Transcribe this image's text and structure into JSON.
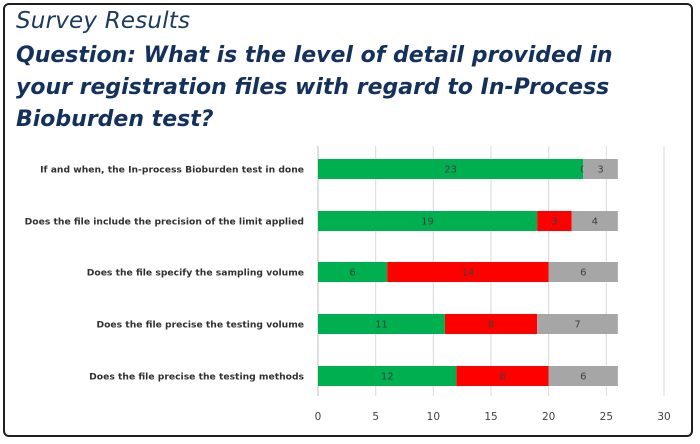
{
  "header": {
    "kicker": "Survey Results",
    "question": "Question: What is the level of detail provided in your registration files with regard to In-Process Bioburden test?"
  },
  "chart_data": {
    "type": "bar",
    "orientation": "horizontal",
    "stacked": true,
    "categories": [
      "If and when, the In-process Bioburden test in done",
      "Does the file include the precision of the limit applied",
      "Does the file specify the sampling volume",
      "Does the file precise the testing volume",
      "Does the file precise the testing methods"
    ],
    "series": [
      {
        "values": [
          23,
          19,
          6,
          11,
          12
        ],
        "color": "#00b050"
      },
      {
        "values": [
          0,
          3,
          14,
          8,
          8
        ],
        "color": "#ff0000"
      },
      {
        "values": [
          3,
          4,
          6,
          7,
          6
        ],
        "color": "#a6a6a6"
      }
    ],
    "xlim": [
      0,
      30
    ],
    "xticks": [
      0,
      5,
      10,
      15,
      20,
      25,
      30
    ],
    "grid": true,
    "legend": "none"
  }
}
